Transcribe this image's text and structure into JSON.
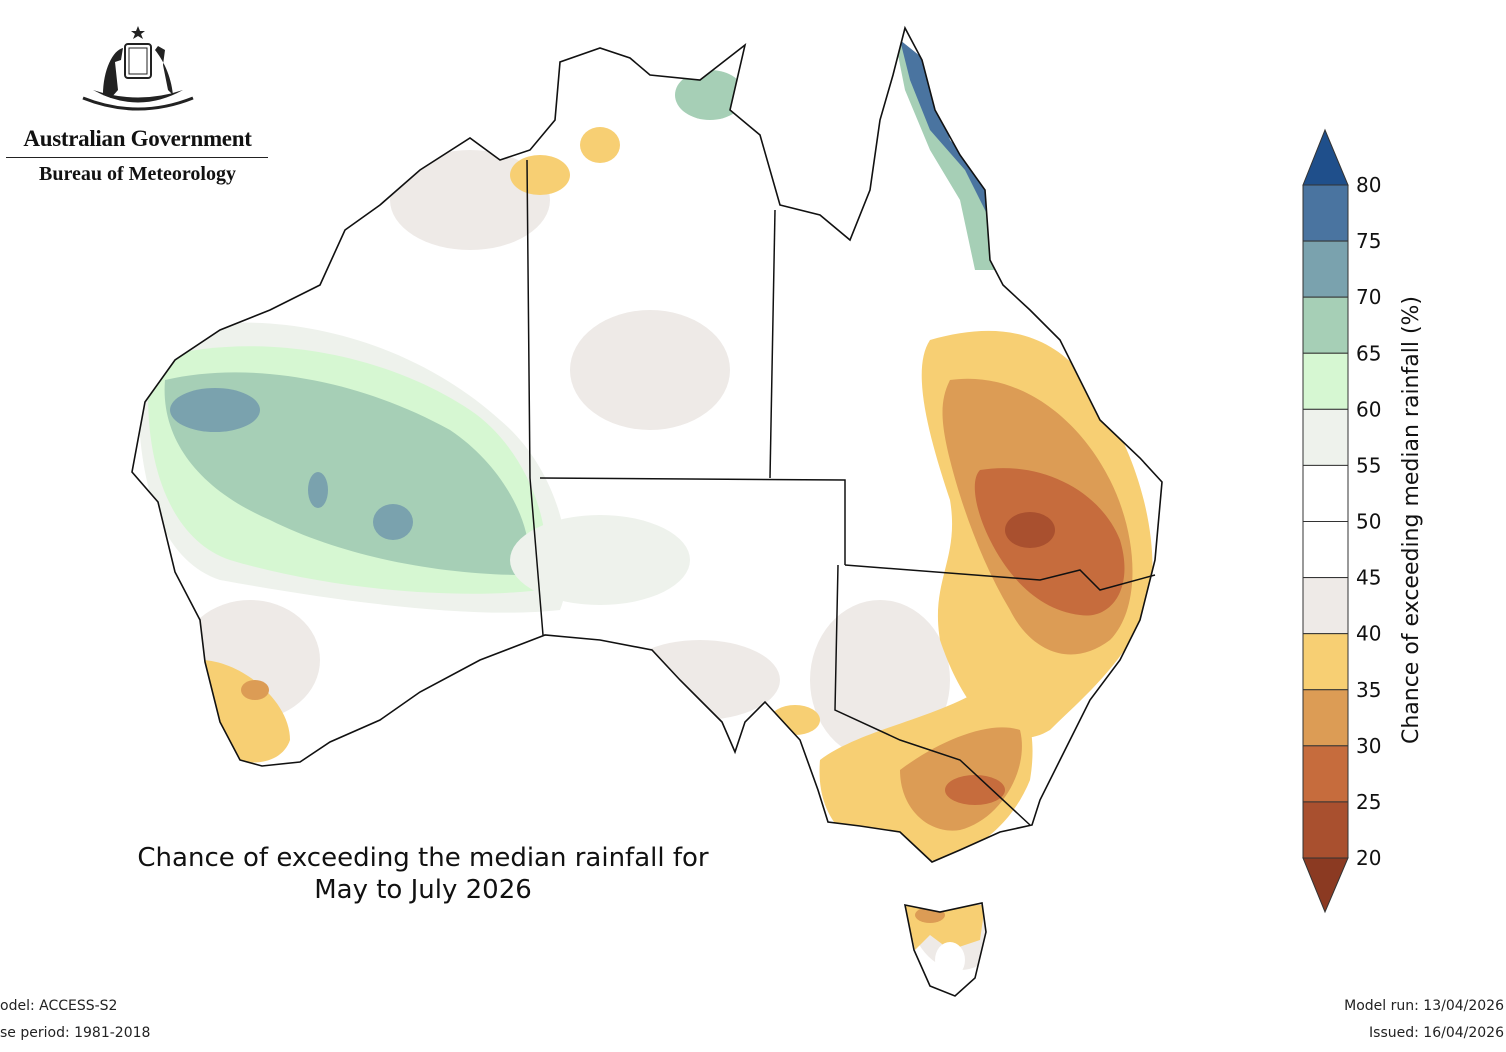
{
  "header": {
    "org_line1": "Australian Government",
    "org_line2": "Bureau of Meteorology"
  },
  "title": {
    "line1": "Chance of exceeding the median rainfall for",
    "line2": "May to July 2026"
  },
  "footer": {
    "model": "odel: ACCESS-S2",
    "base_period": "se period: 1981-2018",
    "model_run": "Model run: 13/04/2026",
    "issued": "Issued: 16/04/2026"
  },
  "colorbar": {
    "label": "Chance of exceeding median rainfall (%)",
    "ticks": [
      "80",
      "75",
      "70",
      "65",
      "60",
      "55",
      "50",
      "45",
      "40",
      "35",
      "30",
      "25",
      "20"
    ],
    "colors_top_to_bottom": [
      "#4a74a0",
      "#7aa2ae",
      "#a6cfb6",
      "#d6f7d2",
      "#eef2ec",
      "#ffffff",
      "#ffffff",
      "#eeeae7",
      "#f7cf73",
      "#dc9c55",
      "#c66c3d",
      "#a9502f"
    ],
    "over_color": "#1f4f8b",
    "under_color": "#8b3a22"
  }
}
